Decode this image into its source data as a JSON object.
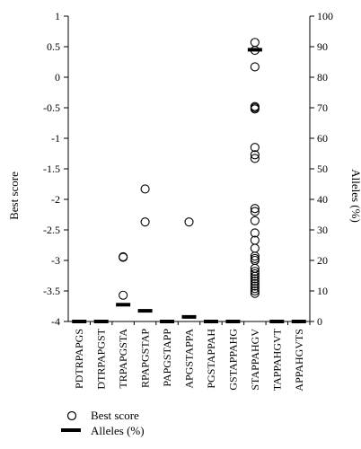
{
  "chart_data": {
    "type": "scatter",
    "categories": [
      "PDTRPAPGS",
      "DTRPAPGST",
      "TRPAPGSTA",
      "RPAPGSTAP",
      "PAPGSTAPP",
      "APGSTAPPA",
      "PGSTAPPAH",
      "GSTAPPAHG",
      "STAPPAHGV",
      "TAPPAHGVT",
      "APPAHGVTS"
    ],
    "left_axis": {
      "label": "Best score",
      "ylim": [
        -4,
        1
      ],
      "ticks": [
        -4,
        -3.5,
        -3,
        -2.5,
        -2,
        -1.5,
        -1,
        -0.5,
        0,
        0.5,
        1
      ],
      "tick_labels": [
        "-4",
        "-3.5",
        "-3",
        "-2.5",
        "-2",
        "-1.5",
        "-1",
        "-0.5",
        "0",
        "0.5",
        "1"
      ]
    },
    "right_axis": {
      "label": "Alleles (%)",
      "ylim": [
        0,
        100
      ],
      "ticks": [
        0,
        10,
        20,
        30,
        40,
        50,
        60,
        70,
        80,
        90,
        100
      ],
      "tick_labels": [
        "0",
        "10",
        "20",
        "30",
        "40",
        "50",
        "60",
        "70",
        "80",
        "90",
        "100"
      ]
    },
    "series": [
      {
        "name": "Best score",
        "axis": "left",
        "marker": "open-circle",
        "points": [
          {
            "x": "TRPAPGSTA",
            "y": -2.95
          },
          {
            "x": "TRPAPGSTA",
            "y": -2.94
          },
          {
            "x": "TRPAPGSTA",
            "y": -3.57
          },
          {
            "x": "RPAPGSTAP",
            "y": -1.83
          },
          {
            "x": "RPAPGSTAP",
            "y": -2.37
          },
          {
            "x": "APGSTAPPA",
            "y": -2.37
          },
          {
            "x": "STAPPAHGV",
            "y": 0.57
          },
          {
            "x": "STAPPAHGV",
            "y": 0.44
          },
          {
            "x": "STAPPAHGV",
            "y": 0.17
          },
          {
            "x": "STAPPAHGV",
            "y": -0.48
          },
          {
            "x": "STAPPAHGV",
            "y": -0.5
          },
          {
            "x": "STAPPAHGV",
            "y": -0.52
          },
          {
            "x": "STAPPAHGV",
            "y": -1.15
          },
          {
            "x": "STAPPAHGV",
            "y": -1.27
          },
          {
            "x": "STAPPAHGV",
            "y": -1.33
          },
          {
            "x": "STAPPAHGV",
            "y": -2.15
          },
          {
            "x": "STAPPAHGV",
            "y": -2.2
          },
          {
            "x": "STAPPAHGV",
            "y": -2.35
          },
          {
            "x": "STAPPAHGV",
            "y": -2.55
          },
          {
            "x": "STAPPAHGV",
            "y": -2.67
          },
          {
            "x": "STAPPAHGV",
            "y": -2.8
          },
          {
            "x": "STAPPAHGV",
            "y": -2.93
          },
          {
            "x": "STAPPAHGV",
            "y": -2.97
          },
          {
            "x": "STAPPAHGV",
            "y": -3.0
          },
          {
            "x": "STAPPAHGV",
            "y": -3.13
          },
          {
            "x": "STAPPAHGV",
            "y": -3.18
          },
          {
            "x": "STAPPAHGV",
            "y": -3.22
          },
          {
            "x": "STAPPAHGV",
            "y": -3.26
          },
          {
            "x": "STAPPAHGV",
            "y": -3.3
          },
          {
            "x": "STAPPAHGV",
            "y": -3.34
          },
          {
            "x": "STAPPAHGV",
            "y": -3.38
          },
          {
            "x": "STAPPAHGV",
            "y": -3.42
          },
          {
            "x": "STAPPAHGV",
            "y": -3.46
          },
          {
            "x": "STAPPAHGV",
            "y": -3.5
          },
          {
            "x": "STAPPAHGV",
            "y": -3.54
          }
        ]
      },
      {
        "name": "Alleles (%)",
        "axis": "right",
        "marker": "bar-line",
        "values": [
          0,
          0,
          5.5,
          3.5,
          0,
          1.5,
          0,
          0,
          89,
          0,
          0
        ]
      }
    ],
    "grid": false,
    "legend_position": "bottom"
  }
}
